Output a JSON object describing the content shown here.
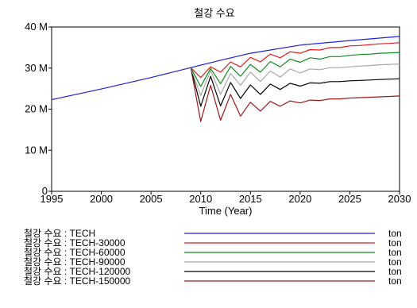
{
  "chart_data": {
    "type": "line",
    "title": "철강 수요",
    "xlabel": "Time (Year)",
    "ylabel": "",
    "xlim": [
      1995,
      2030
    ],
    "ylim": [
      0,
      40000000
    ],
    "x_ticks": [
      1995,
      2000,
      2005,
      2010,
      2015,
      2020,
      2025,
      2030
    ],
    "x_tick_labels": [
      "1995",
      "2000",
      "2005",
      "2010",
      "2015",
      "2020",
      "2025",
      "2030"
    ],
    "y_ticks": [
      0,
      10000000,
      20000000,
      30000000,
      40000000
    ],
    "y_tick_labels": [
      "0",
      "10 M",
      "20 M",
      "30 M",
      "40 M"
    ],
    "grid": false,
    "legend_position": "bottom",
    "series": [
      {
        "name": "철강 수요 : TECH",
        "unit": "ton",
        "color": "#1f1fd6",
        "x": [
          1995,
          2000,
          2005,
          2009,
          2012,
          2015,
          2020,
          2025,
          2030
        ],
        "y": [
          22300000,
          24900000,
          27700000,
          30100000,
          31900000,
          33600000,
          35600000,
          36700000,
          37700000
        ]
      },
      {
        "name": "철강 수요 : TECH-30000",
        "unit": "ton",
        "color": "#e01a1a",
        "x": [
          2009,
          2010,
          2011,
          2012,
          2013,
          2014,
          2015,
          2016,
          2017,
          2018,
          2019,
          2020,
          2021,
          2022,
          2023,
          2024,
          2025,
          2026,
          2027,
          2028,
          2029,
          2030
        ],
        "y": [
          30100000,
          27700000,
          30300000,
          29000000,
          31500000,
          30300000,
          32600000,
          31500000,
          33400000,
          32500000,
          34000000,
          33600000,
          34500000,
          34400000,
          35000000,
          35000000,
          35400000,
          35500000,
          35700000,
          35900000,
          36000000,
          36200000
        ]
      },
      {
        "name": "철강 수요 : TECH-60000",
        "unit": "ton",
        "color": "#0e8c1e",
        "x": [
          2009,
          2010,
          2011,
          2012,
          2013,
          2014,
          2015,
          2016,
          2017,
          2018,
          2019,
          2020,
          2021,
          2022,
          2023,
          2024,
          2025,
          2026,
          2027,
          2028,
          2029,
          2030
        ],
        "y": [
          30100000,
          25500000,
          29900000,
          26200000,
          30400000,
          28000000,
          30900000,
          29000000,
          31600000,
          30300000,
          32200000,
          31400000,
          32500000,
          32200000,
          32800000,
          32800000,
          33100000,
          33300000,
          33400000,
          33600000,
          33700000,
          33800000
        ]
      },
      {
        "name": "철강 수요 : TECH-90000",
        "unit": "ton",
        "color": "#a8a8a8",
        "x": [
          2009,
          2010,
          2011,
          2012,
          2013,
          2014,
          2015,
          2016,
          2017,
          2018,
          2019,
          2020,
          2021,
          2022,
          2023,
          2024,
          2025,
          2026,
          2027,
          2028,
          2029,
          2030
        ],
        "y": [
          30100000,
          23300000,
          29400000,
          23600000,
          28700000,
          25800000,
          29000000,
          26700000,
          29300000,
          27800000,
          29800000,
          28800000,
          29800000,
          29600000,
          30100000,
          30100000,
          30300000,
          30500000,
          30600000,
          30800000,
          30900000,
          31000000
        ]
      },
      {
        "name": "철강 수요 : TECH-120000",
        "unit": "ton",
        "color": "#000000",
        "x": [
          2009,
          2010,
          2011,
          2012,
          2013,
          2014,
          2015,
          2016,
          2017,
          2018,
          2019,
          2020,
          2021,
          2022,
          2023,
          2024,
          2025,
          2026,
          2027,
          2028,
          2029,
          2030
        ],
        "y": [
          30100000,
          20700000,
          28000000,
          20800000,
          26500000,
          22600000,
          25900000,
          23600000,
          26100000,
          24800000,
          26300000,
          25600000,
          26400000,
          26300000,
          26700000,
          26700000,
          26900000,
          27000000,
          27100000,
          27200000,
          27300000,
          27400000
        ]
      },
      {
        "name": "철강 수요 : TECH-150000",
        "unit": "ton",
        "color": "#a01818",
        "x": [
          2009,
          2010,
          2011,
          2012,
          2013,
          2014,
          2015,
          2016,
          2017,
          2018,
          2019,
          2020,
          2021,
          2022,
          2023,
          2024,
          2025,
          2026,
          2027,
          2028,
          2029,
          2030
        ],
        "y": [
          30100000,
          17000000,
          25800000,
          17300000,
          23600000,
          18300000,
          21700000,
          19500000,
          21900000,
          20700000,
          22000000,
          21500000,
          22200000,
          22100000,
          22500000,
          22500000,
          22700000,
          22800000,
          22900000,
          23000000,
          23100000,
          23200000
        ]
      }
    ]
  }
}
